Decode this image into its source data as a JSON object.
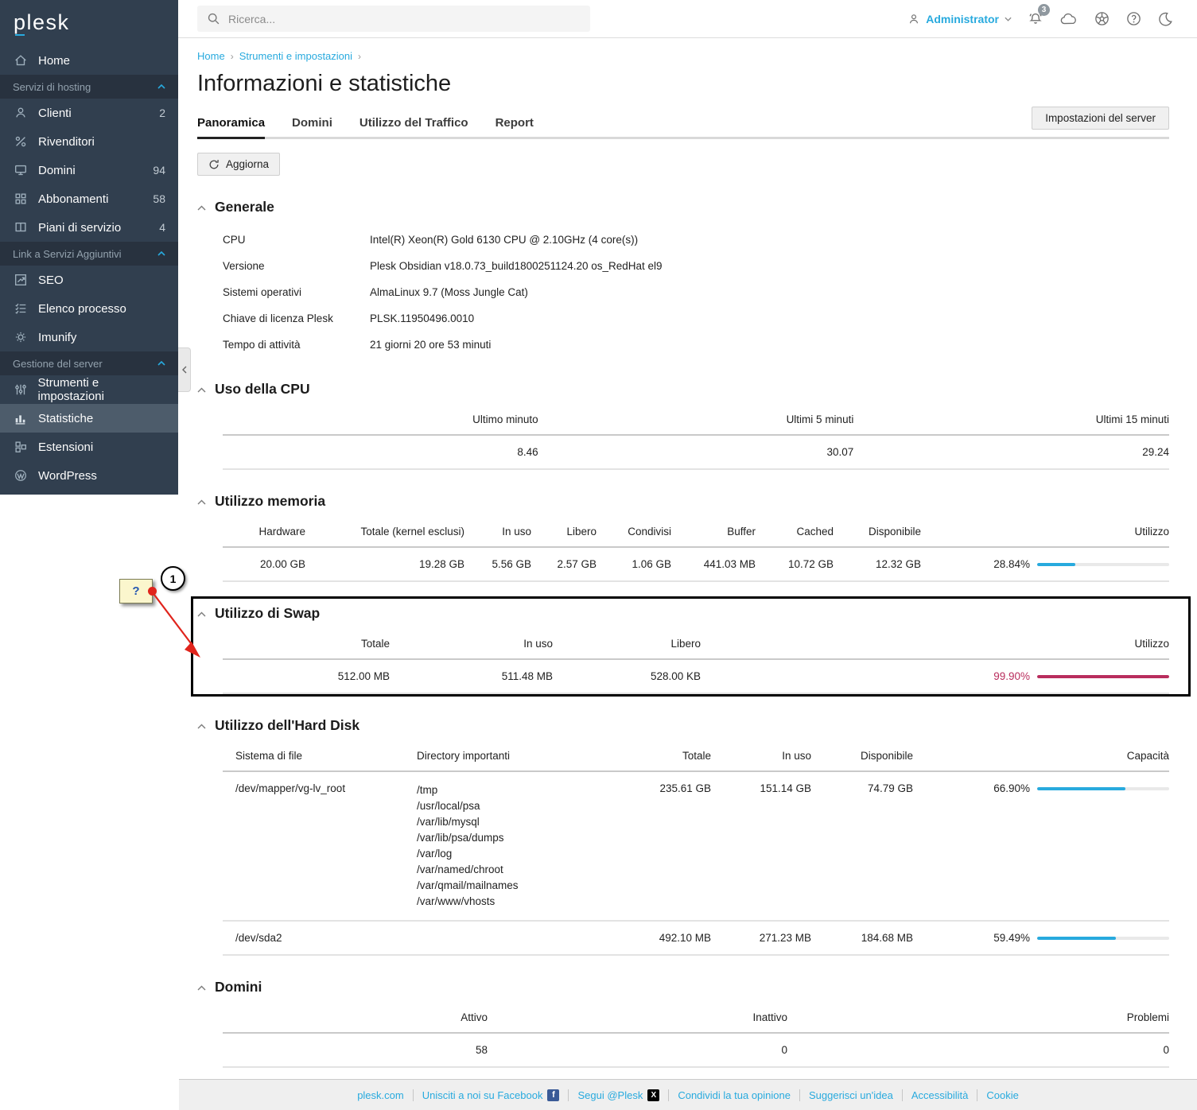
{
  "app": {
    "logo": "plesk"
  },
  "topbar": {
    "search_placeholder": "Ricerca...",
    "user": "Administrator",
    "notification_count": "3"
  },
  "breadcrumb": {
    "items": [
      "Home",
      "Strumenti e impostazioni"
    ]
  },
  "page": {
    "title": "Informazioni e statistiche"
  },
  "tabs": [
    "Panoramica",
    "Domini",
    "Utilizzo del Traffico",
    "Report"
  ],
  "buttons": {
    "server_settings": "Impostazioni del server",
    "refresh": "Aggiorna"
  },
  "sidebar": {
    "home": "Home",
    "section_hosting": "Servizi di hosting",
    "section_links": "Link a Servizi Aggiuntivi",
    "section_server": "Gestione del server",
    "items": [
      {
        "label": "Clienti",
        "count": "2"
      },
      {
        "label": "Rivenditori",
        "count": ""
      },
      {
        "label": "Domini",
        "count": "94"
      },
      {
        "label": "Abbonamenti",
        "count": "58"
      },
      {
        "label": "Piani di servizio",
        "count": "4"
      },
      {
        "label": "SEO"
      },
      {
        "label": "Elenco processo"
      },
      {
        "label": "Imunify"
      },
      {
        "label": "Strumenti e impostazioni"
      },
      {
        "label": "Statistiche"
      },
      {
        "label": "Estensioni"
      },
      {
        "label": "WordPress"
      }
    ]
  },
  "sections": {
    "general": {
      "title": "Generale",
      "rows": [
        {
          "label": "CPU",
          "value": "Intel(R) Xeon(R) Gold 6130 CPU @ 2.10GHz (4 core(s))"
        },
        {
          "label": "Versione",
          "value": "Plesk Obsidian v18.0.73_build1800251124.20 os_RedHat el9"
        },
        {
          "label": "Sistemi operativi",
          "value": "AlmaLinux 9.7 (Moss Jungle Cat)"
        },
        {
          "label": "Chiave di licenza Plesk",
          "value": "PLSK.11950496.0010"
        },
        {
          "label": "Tempo di attività",
          "value": "21 giorni 20 ore 53 minuti"
        }
      ]
    },
    "cpu": {
      "title": "Uso della CPU",
      "headers": [
        "Ultimo minuto",
        "Ultimi 5 minuti",
        "Ultimi 15 minuti"
      ],
      "values": [
        "8.46",
        "30.07",
        "29.24"
      ]
    },
    "memory": {
      "title": "Utilizzo memoria",
      "headers": [
        "Hardware",
        "Totale (kernel esclusi)",
        "In uso",
        "Libero",
        "Condivisi",
        "Buffer",
        "Cached",
        "Disponibile",
        "Utilizzo"
      ],
      "row": {
        "hardware": "20.00 GB",
        "total": "19.28 GB",
        "in_use": "5.56 GB",
        "free": "2.57 GB",
        "shared": "1.06 GB",
        "buffer": "441.03 MB",
        "cached": "10.72 GB",
        "available": "12.32 GB",
        "usage": {
          "label": "28.84%",
          "pct": 28.84,
          "color": "#28aade"
        }
      }
    },
    "swap": {
      "title": "Utilizzo di Swap",
      "headers": [
        "Totale",
        "In uso",
        "Libero",
        "Utilizzo"
      ],
      "row": {
        "total": "512.00 MB",
        "in_use": "511.48 MB",
        "free": "528.00 KB",
        "usage": {
          "label": "99.90%",
          "pct": 99.9,
          "color": "#b92d5d"
        }
      }
    },
    "disk": {
      "title": "Utilizzo dell'Hard Disk",
      "headers": [
        "Sistema di file",
        "Directory importanti",
        "Totale",
        "In uso",
        "Disponibile",
        "Capacità"
      ],
      "rows": [
        {
          "fs": "/dev/mapper/vg-lv_root",
          "dirs": [
            "/tmp",
            "/usr/local/psa",
            "/var/lib/mysql",
            "/var/lib/psa/dumps",
            "/var/log",
            "/var/named/chroot",
            "/var/qmail/mailnames",
            "/var/www/vhosts"
          ],
          "total": "235.61 GB",
          "in_use": "151.14 GB",
          "available": "74.79 GB",
          "usage": {
            "label": "66.90%",
            "pct": 66.9,
            "color": "#28aade"
          }
        },
        {
          "fs": "/dev/sda2",
          "total": "492.10 MB",
          "in_use": "271.23 MB",
          "available": "184.68 MB",
          "usage": {
            "label": "59.49%",
            "pct": 59.49,
            "color": "#28aade"
          }
        }
      ]
    },
    "domains": {
      "title": "Domini",
      "headers": [
        "Attivo",
        "Inattivo",
        "Problemi"
      ],
      "values": [
        "58",
        "0",
        "0"
      ]
    }
  },
  "footer": {
    "links": [
      "plesk.com",
      "Unisciti a noi su Facebook",
      "Segui @Plesk",
      "Condividi la tua opinione",
      "Suggerisci un'idea",
      "Accessibilità",
      "Cookie"
    ]
  },
  "annotation": {
    "step": "1",
    "note": "?"
  },
  "colors": {
    "accent": "#28aade",
    "danger": "#b92d5d",
    "sidebar": "#313f4f"
  }
}
